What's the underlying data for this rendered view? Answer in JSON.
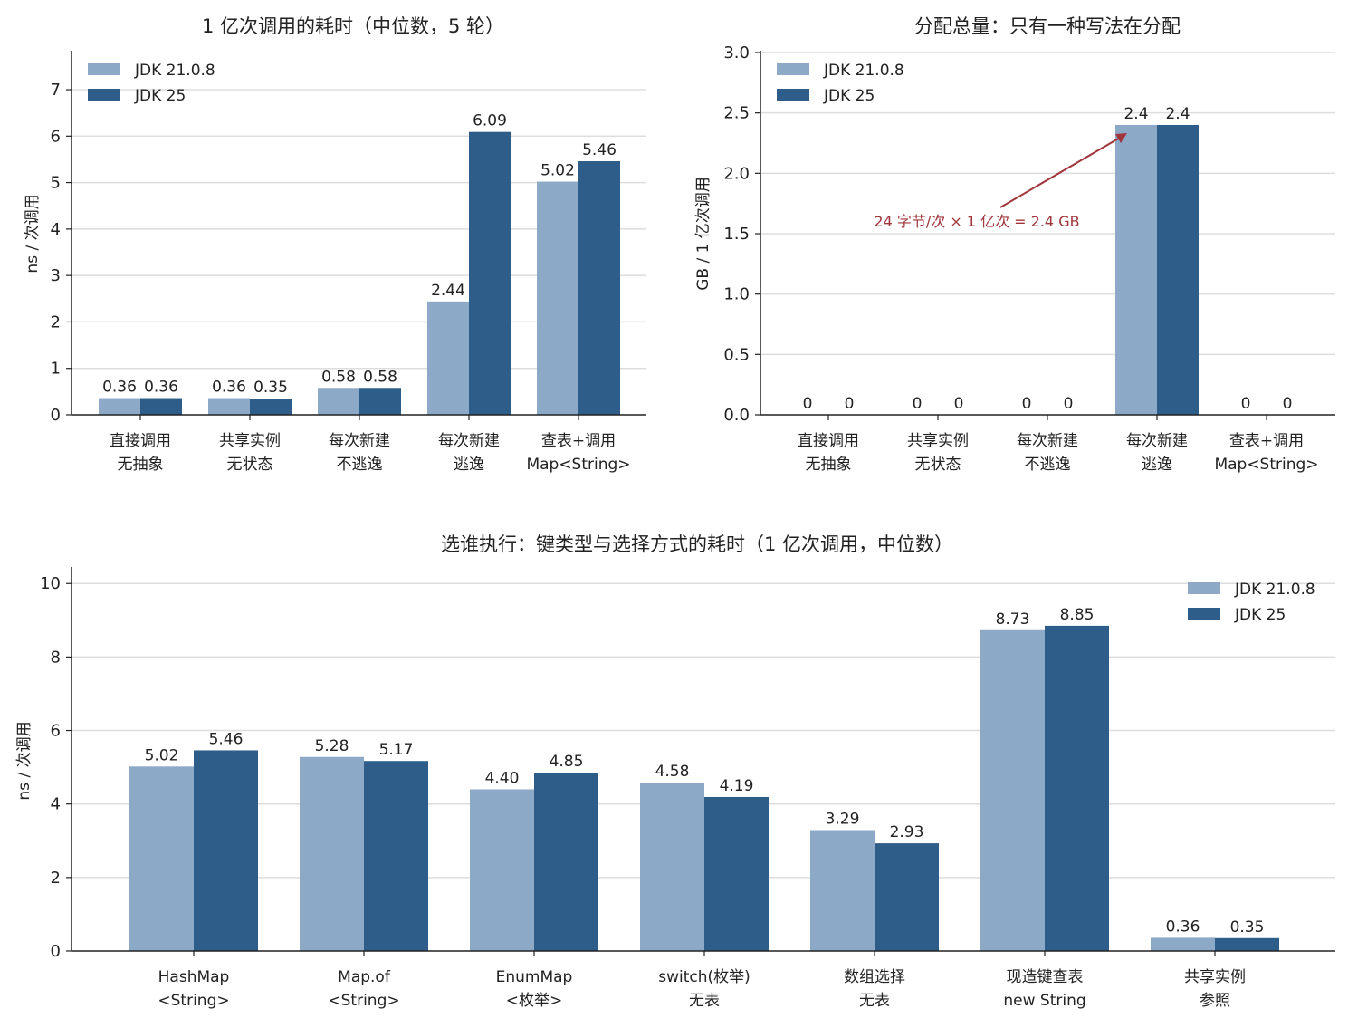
{
  "colors": {
    "jdk21": "#8da9c8",
    "jdk25": "#2e5d8a",
    "grid": "#dddddd",
    "axis": "#222222",
    "annotation": "#a0353b"
  },
  "chart_data": [
    {
      "type": "bar",
      "title": "1 亿次调用的耗时（中位数，5 轮）",
      "ylabel": "ns / 次调用",
      "ylim": [
        0,
        7.8
      ],
      "yticks": [
        "0",
        "1",
        "2",
        "3",
        "4",
        "5",
        "6",
        "7"
      ],
      "grid": true,
      "legend": "top-left",
      "categories": [
        [
          "直接调用",
          "无抽象"
        ],
        [
          "共享实例",
          "无状态"
        ],
        [
          "每次新建",
          "不逃逸"
        ],
        [
          "每次新建",
          "逃逸"
        ],
        [
          "查表+调用",
          "Map<String>"
        ]
      ],
      "series": [
        {
          "name": "JDK 21.0.8",
          "values": [
            0.36,
            0.36,
            0.58,
            2.44,
            5.02
          ],
          "labels": [
            "0.36",
            "0.36",
            "0.58",
            "2.44",
            "5.02"
          ]
        },
        {
          "name": "JDK 25",
          "values": [
            0.36,
            0.35,
            0.58,
            6.09,
            5.46
          ],
          "labels": [
            "0.36",
            "0.35",
            "0.58",
            "6.09",
            "5.46"
          ]
        }
      ]
    },
    {
      "type": "bar",
      "title": "分配总量：只有一种写法在分配",
      "ylabel": "GB / 1 亿次调用",
      "ylim": [
        0,
        3.0
      ],
      "yticks": [
        "0.0",
        "0.5",
        "1.0",
        "1.5",
        "2.0",
        "2.5",
        "3.0"
      ],
      "grid": true,
      "legend": "top-left",
      "categories": [
        [
          "直接调用",
          "无抽象"
        ],
        [
          "共享实例",
          "无状态"
        ],
        [
          "每次新建",
          "不逃逸"
        ],
        [
          "每次新建",
          "逃逸"
        ],
        [
          "查表+调用",
          "Map<String>"
        ]
      ],
      "series": [
        {
          "name": "JDK 21.0.8",
          "values": [
            0,
            0,
            0,
            2.4,
            0
          ],
          "labels": [
            "0",
            "0",
            "0",
            "2.4",
            "0"
          ]
        },
        {
          "name": "JDK 25",
          "values": [
            0,
            0,
            0,
            2.4,
            0
          ],
          "labels": [
            "0",
            "0",
            "0",
            "2.4",
            "0"
          ]
        }
      ],
      "annotation": {
        "text": "24 字节/次 × 1 亿次 = 2.4 GB",
        "points_to_category": 3
      }
    },
    {
      "type": "bar",
      "title": "选谁执行：键类型与选择方式的耗时（1 亿次调用，中位数）",
      "ylabel": "ns / 次调用",
      "ylim": [
        0,
        10.4
      ],
      "yticks": [
        "0",
        "2",
        "4",
        "6",
        "8",
        "10"
      ],
      "grid": true,
      "legend": "top-right",
      "categories": [
        [
          "HashMap",
          "<String>"
        ],
        [
          "Map.of",
          "<String>"
        ],
        [
          "EnumMap",
          "<枚举>"
        ],
        [
          "switch(枚举)",
          "无表"
        ],
        [
          "数组选择",
          "无表"
        ],
        [
          "现造键查表",
          "new String"
        ],
        [
          "共享实例",
          "参照"
        ]
      ],
      "series": [
        {
          "name": "JDK 21.0.8",
          "values": [
            5.02,
            5.28,
            4.4,
            4.58,
            3.29,
            8.73,
            0.36
          ],
          "labels": [
            "5.02",
            "5.28",
            "4.40",
            "4.58",
            "3.29",
            "8.73",
            "0.36"
          ]
        },
        {
          "name": "JDK 25",
          "values": [
            5.46,
            5.17,
            4.85,
            4.19,
            2.93,
            8.85,
            0.35
          ],
          "labels": [
            "5.46",
            "5.17",
            "4.85",
            "4.19",
            "2.93",
            "8.85",
            "0.35"
          ]
        }
      ]
    }
  ]
}
